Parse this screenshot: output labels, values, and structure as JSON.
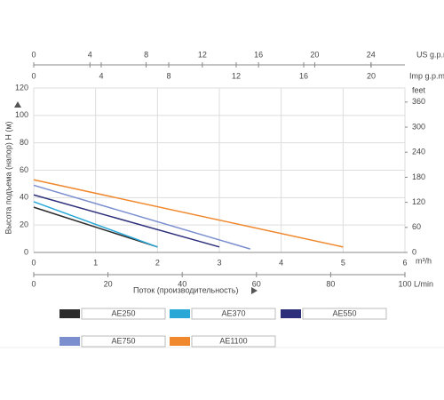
{
  "chart_data": {
    "type": "line",
    "y_label": "Высота подъема (напор) Н (м)",
    "x_label": "Поток (производительность)",
    "x_unit": "m³/h",
    "xlim": [
      0,
      6
    ],
    "xticks": [
      0,
      1,
      2,
      3,
      4,
      5,
      6
    ],
    "ylim": [
      0,
      120
    ],
    "yticks": [
      0,
      20,
      40,
      60,
      80,
      100,
      120
    ],
    "y2_unit": "feet",
    "y2lim": [
      0,
      393.7
    ],
    "y2ticks": [
      0,
      60,
      120,
      180,
      240,
      300,
      360
    ],
    "us_gpm": {
      "unit": "US g.p.m",
      "lim": [
        0,
        26.42
      ],
      "ticks": [
        0,
        4,
        8,
        12,
        16,
        20,
        24
      ]
    },
    "imp_gpm": {
      "unit": "Imp g.p.m",
      "lim": [
        0,
        22
      ],
      "ticks": [
        0,
        4,
        8,
        12,
        16,
        20
      ]
    },
    "lpm": {
      "unit": "L/min",
      "lim": [
        0,
        100
      ],
      "ticks": [
        0,
        20,
        40,
        60,
        80,
        100
      ]
    },
    "grid": true,
    "series": [
      {
        "name": "AE250",
        "color": "#2b2b2b",
        "x": [
          0,
          2
        ],
        "values": [
          33,
          4
        ]
      },
      {
        "name": "AE370",
        "color": "#29a8d8",
        "x": [
          0,
          2
        ],
        "values": [
          37,
          4
        ]
      },
      {
        "name": "AE550",
        "color": "#2d2f7a",
        "x": [
          0,
          3
        ],
        "values": [
          42,
          4
        ]
      },
      {
        "name": "AE750",
        "color": "#7b8fcf",
        "x": [
          0,
          3.5
        ],
        "values": [
          49,
          2.5
        ]
      },
      {
        "name": "AE1100",
        "color": "#f0882e",
        "x": [
          0,
          5
        ],
        "values": [
          53,
          4
        ]
      }
    ]
  }
}
